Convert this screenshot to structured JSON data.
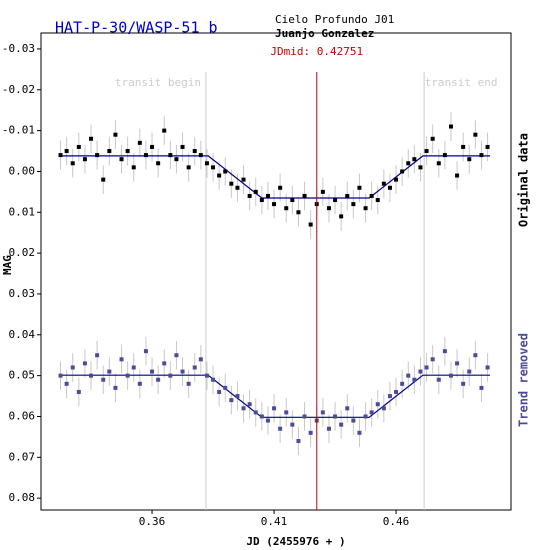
{
  "chart_data": {
    "type": "scatter",
    "title": "HAT-P-30/WASP-51 b",
    "observatory": "Cielo Profundo J01",
    "observer": "Juanjo Gonzalez",
    "xlabel": "JD (2455976 + )",
    "ylabel": "MAG",
    "xlim": [
      0.3145,
      0.5071
    ],
    "ylim": [
      -0.0339,
      0.0829
    ],
    "y_inverted": true,
    "xticks": [
      0.36,
      0.41,
      0.46
    ],
    "yticks": [
      -0.03,
      -0.02,
      -0.01,
      {
        "value": 0,
        "label": "0.00"
      },
      0.01,
      0.02,
      0.03,
      0.04,
      0.05,
      0.06,
      0.07,
      0.08
    ],
    "jdmid": {
      "label": "JDmid: 0.42751",
      "x": 0.42751,
      "color": "#cc0000"
    },
    "markers": [
      {
        "label": "transit begin",
        "x": 0.3821
      },
      {
        "label": "transit end",
        "x": 0.4715
      }
    ],
    "x": [
      0.3225,
      0.325,
      0.3275,
      0.33,
      0.3325,
      0.335,
      0.3375,
      0.34,
      0.3425,
      0.345,
      0.3475,
      0.35,
      0.3525,
      0.355,
      0.3575,
      0.36,
      0.3625,
      0.365,
      0.3675,
      0.37,
      0.3725,
      0.375,
      0.3775,
      0.38,
      0.3825,
      0.385,
      0.3875,
      0.39,
      0.3925,
      0.395,
      0.3975,
      0.4,
      0.4025,
      0.405,
      0.4075,
      0.41,
      0.4125,
      0.415,
      0.4175,
      0.42,
      0.4225,
      0.425,
      0.4275,
      0.43,
      0.4325,
      0.435,
      0.4375,
      0.44,
      0.4425,
      0.445,
      0.4475,
      0.45,
      0.4525,
      0.455,
      0.4575,
      0.46,
      0.4625,
      0.465,
      0.4675,
      0.47,
      0.4725,
      0.475,
      0.4775,
      0.48,
      0.4825,
      0.485,
      0.4875,
      0.49,
      0.4925,
      0.495,
      0.4975
    ],
    "model_x": [
      0.3223,
      0.383,
      0.405,
      0.449,
      0.471,
      0.4985
    ],
    "model_color": "#00008b",
    "series": [
      {
        "name": "Original data",
        "color": "#000000",
        "error": 0.0035,
        "values": [
          -0.004,
          -0.005,
          -0.002,
          -0.006,
          -0.003,
          -0.008,
          -0.004,
          0.002,
          -0.005,
          -0.009,
          -0.003,
          -0.005,
          -0.001,
          -0.007,
          -0.004,
          -0.006,
          -0.002,
          -0.01,
          -0.004,
          -0.003,
          -0.006,
          -0.001,
          -0.005,
          -0.004,
          -0.002,
          -0.001,
          0.001,
          0,
          0.003,
          0.004,
          0.002,
          0.006,
          0.005,
          0.007,
          0.006,
          0.008,
          0.004,
          0.009,
          0.007,
          0.01,
          0.006,
          0.013,
          0.008,
          0.005,
          0.009,
          0.007,
          0.011,
          0.006,
          0.008,
          0.004,
          0.009,
          0.006,
          0.007,
          0.003,
          0.004,
          0.002,
          0,
          -0.002,
          -0.003,
          -0.001,
          -0.005,
          -0.008,
          -0.002,
          -0.004,
          -0.011,
          0.001,
          -0.006,
          -0.003,
          -0.009,
          -0.004,
          -0.006
        ],
        "model": [
          -0.0038,
          -0.0038,
          0.0065,
          0.0065,
          -0.0038,
          -0.0038
        ]
      },
      {
        "name": "Trend removed",
        "color": "#4b4b9b",
        "error": 0.0035,
        "values": [
          0.05,
          0.052,
          0.048,
          0.054,
          0.047,
          0.05,
          0.045,
          0.051,
          0.049,
          0.053,
          0.046,
          0.05,
          0.048,
          0.052,
          0.044,
          0.049,
          0.051,
          0.047,
          0.05,
          0.045,
          0.049,
          0.052,
          0.048,
          0.046,
          0.05,
          0.051,
          0.054,
          0.053,
          0.056,
          0.055,
          0.058,
          0.057,
          0.059,
          0.06,
          0.061,
          0.058,
          0.063,
          0.059,
          0.062,
          0.066,
          0.06,
          0.064,
          0.061,
          0.059,
          0.063,
          0.06,
          0.062,
          0.058,
          0.061,
          0.064,
          0.06,
          0.059,
          0.057,
          0.058,
          0.055,
          0.054,
          0.052,
          0.05,
          0.051,
          0.049,
          0.048,
          0.046,
          0.051,
          0.044,
          0.05,
          0.047,
          0.052,
          0.049,
          0.045,
          0.053,
          0.048
        ],
        "model": [
          0.0499,
          0.0499,
          0.0602,
          0.0602,
          0.0499,
          0.0499
        ]
      }
    ]
  }
}
